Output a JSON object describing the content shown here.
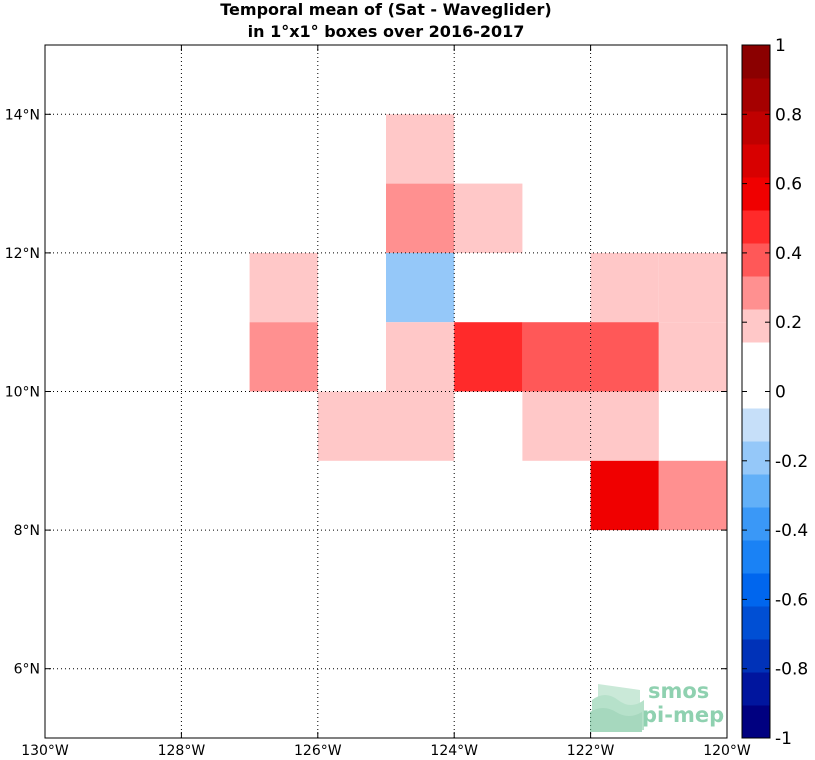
{
  "chart_data": {
    "type": "heatmap",
    "title": [
      "Temporal mean of (Sat - Waveglider)",
      "in 1°x1° boxes over 2016-2017"
    ],
    "x_range": [
      -130,
      -120
    ],
    "y_range": [
      5,
      15
    ],
    "grid": true,
    "x_ticks": [
      {
        "value": -130,
        "label": "130°W"
      },
      {
        "value": -128,
        "label": "128°W"
      },
      {
        "value": -126,
        "label": "126°W"
      },
      {
        "value": -124,
        "label": "124°W"
      },
      {
        "value": -122,
        "label": "122°W"
      },
      {
        "value": -120,
        "label": "120°W"
      }
    ],
    "y_ticks": [
      {
        "value": 6,
        "label": "6°N"
      },
      {
        "value": 8,
        "label": "8°N"
      },
      {
        "value": 10,
        "label": "10°N"
      },
      {
        "value": 12,
        "label": "12°N"
      },
      {
        "value": 14,
        "label": "14°N"
      }
    ],
    "cells": [
      {
        "lon": -125,
        "lat": 13,
        "value": 0.15
      },
      {
        "lon": -125,
        "lat": 12,
        "value": 0.25
      },
      {
        "lon": -124,
        "lat": 12,
        "value": 0.15
      },
      {
        "lon": -127,
        "lat": 11,
        "value": 0.15
      },
      {
        "lon": -125,
        "lat": 11,
        "value": -0.15
      },
      {
        "lon": -122,
        "lat": 11,
        "value": 0.15
      },
      {
        "lon": -121,
        "lat": 11,
        "value": 0.15
      },
      {
        "lon": -127,
        "lat": 10,
        "value": 0.25
      },
      {
        "lon": -125,
        "lat": 10,
        "value": 0.15
      },
      {
        "lon": -124,
        "lat": 10,
        "value": 0.45
      },
      {
        "lon": -123,
        "lat": 10,
        "value": 0.35
      },
      {
        "lon": -122,
        "lat": 10,
        "value": 0.35
      },
      {
        "lon": -121,
        "lat": 10,
        "value": 0.15
      },
      {
        "lon": -126,
        "lat": 9,
        "value": 0.15
      },
      {
        "lon": -125,
        "lat": 9,
        "value": 0.15
      },
      {
        "lon": -123,
        "lat": 9,
        "value": 0.15
      },
      {
        "lon": -122,
        "lat": 9,
        "value": 0.15
      },
      {
        "lon": -122,
        "lat": 8,
        "value": 0.55
      },
      {
        "lon": -121,
        "lat": 8,
        "value": 0.25
      }
    ],
    "colorbar": {
      "range": [
        -1,
        1
      ],
      "ticks": [
        {
          "value": 1,
          "label": "1"
        },
        {
          "value": 0.8,
          "label": "0.8"
        },
        {
          "value": 0.6,
          "label": "0.6"
        },
        {
          "value": 0.4,
          "label": "0.4"
        },
        {
          "value": 0.2,
          "label": "0.2"
        },
        {
          "value": 0,
          "label": "0"
        },
        {
          "value": -0.2,
          "label": "-0.2"
        },
        {
          "value": -0.4,
          "label": "-0.4"
        },
        {
          "value": -0.6,
          "label": "-0.6"
        },
        {
          "value": -0.8,
          "label": "-0.8"
        },
        {
          "value": -1,
          "label": "-1"
        }
      ],
      "colors": [
        "#000080",
        "#00159e",
        "#0032b8",
        "#004fd4",
        "#0066ee",
        "#1a82f5",
        "#3a98f7",
        "#62b0f8",
        "#95c8f9",
        "#c6dff9",
        "#ffffff",
        "#ffffff",
        "#ffc8c8",
        "#ff9090",
        "#ff5858",
        "#ff2a2a",
        "#f00000",
        "#d80000",
        "#c00000",
        "#a50000",
        "#8b0000"
      ]
    }
  },
  "logo": {
    "line1": "smos",
    "line2": "pi-mep"
  }
}
